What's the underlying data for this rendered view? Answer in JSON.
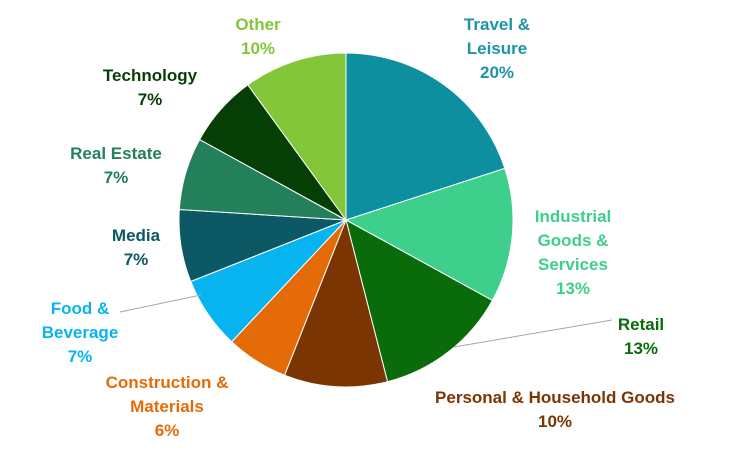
{
  "chart_data": {
    "type": "pie",
    "title": "",
    "start_angle_deg": 0,
    "direction": "clockwise",
    "slices": [
      {
        "name_lines": [
          "Travel &",
          "Leisure"
        ],
        "value_label": "20%",
        "value": 20,
        "color": "#0e8fa0"
      },
      {
        "name_lines": [
          "Industrial",
          "Goods &",
          "Services"
        ],
        "value_label": "13%",
        "value": 13,
        "color": "#3dcf8b"
      },
      {
        "name_lines": [
          "Retail"
        ],
        "value_label": "13%",
        "value": 13,
        "color": "#0a6b0a"
      },
      {
        "name_lines": [
          "Personal & Household Goods"
        ],
        "value_label": "10%",
        "value": 10,
        "color": "#7b3503"
      },
      {
        "name_lines": [
          "Construction &",
          "Materials"
        ],
        "value_label": "6%",
        "value": 6,
        "color": "#e46b08"
      },
      {
        "name_lines": [
          "Food &",
          "Beverage"
        ],
        "value_label": "7%",
        "value": 7,
        "color": "#08b4f0"
      },
      {
        "name_lines": [
          "Media"
        ],
        "value_label": "7%",
        "value": 7,
        "color": "#0c5864"
      },
      {
        "name_lines": [
          "Real Estate"
        ],
        "value_label": "7%",
        "value": 7,
        "color": "#23805a"
      },
      {
        "name_lines": [
          "Technology"
        ],
        "value_label": "7%",
        "value": 7,
        "color": "#063f06"
      },
      {
        "name_lines": [
          "Other"
        ],
        "value_label": "10%",
        "value": 10,
        "color": "#84c63a"
      }
    ],
    "label_colors": [
      "#1b95a6",
      "#3dcf8b",
      "#0a6b0a",
      "#7b3503",
      "#e46b08",
      "#08b4f0",
      "#0c5864",
      "#23805a",
      "#063f06",
      "#84c63a"
    ]
  }
}
